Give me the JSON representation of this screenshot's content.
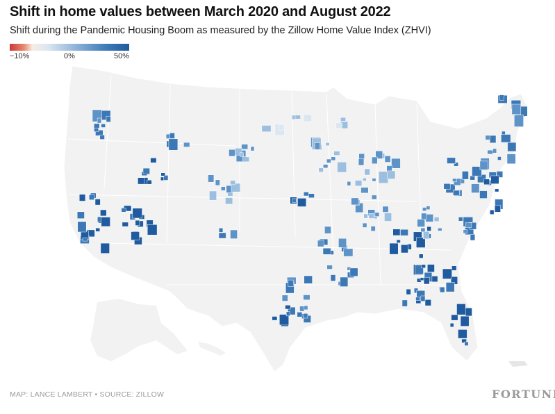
{
  "title": "Shift in home values between March 2020 and August 2022",
  "subtitle": "Shift during the Pandemic Housing Boom as measured by the Zillow Home Value Index (ZHVI)",
  "legend": {
    "labels": [
      "−10%",
      "0%",
      "50%"
    ],
    "min_value": -10,
    "max_value": 50,
    "colors": [
      "#c93a3a",
      "#f7ede6",
      "#dbe6f1",
      "#8fb4d8",
      "#3f7cb9",
      "#1f5b9e"
    ]
  },
  "map": {
    "region": "United States",
    "land_color": "#f2f2f2",
    "border_color": "#ffffff",
    "color_scale": {
      "low": "#dbe6f1",
      "mid": "#5e93c8",
      "high": "#1f5b9e"
    }
  },
  "footer": {
    "credit": "MAP: LANCE LAMBERT • SOURCE: ZILLOW",
    "brand": "FORTUNE"
  }
}
